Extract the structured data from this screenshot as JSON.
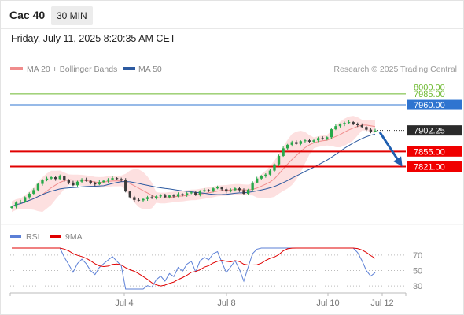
{
  "header": {
    "symbol": "Cac 40",
    "timeframe": "30 MIN"
  },
  "datetime": "Friday, July 11, 2025 8:20:35 AM CET",
  "legend": {
    "ma20": {
      "label": "MA 20 + Bollinger Bands",
      "color": "#f08c8c"
    },
    "ma50": {
      "label": "MA 50",
      "color": "#2d5aa0"
    }
  },
  "credit": "Research © 2025 Trading Central",
  "rsi_legend": {
    "rsi": {
      "label": "RSI",
      "color": "#5b7fd6"
    },
    "ma9": {
      "label": "9MA",
      "color": "#e00000"
    }
  },
  "chart_data": [
    {
      "type": "candlestick",
      "ylim": [
        7705,
        8015
      ],
      "levels": [
        {
          "value": 8000.0,
          "label": "8000.00",
          "color": "#6bb82c",
          "label_color": "#6bb82c",
          "style": "line"
        },
        {
          "value": 7985.0,
          "label": "7985.00",
          "color": "#6bb82c",
          "label_color": "#6bb82c",
          "style": "line"
        },
        {
          "value": 7960.0,
          "label": "7960.00",
          "color": "#2f74d0",
          "label_color": "#ffffff",
          "label_bg": "#2f74d0",
          "style": "line"
        },
        {
          "value": 7902.25,
          "label": "7902.25",
          "color": "#333333",
          "label_color": "#ffffff",
          "label_bg": "#2b2b2b",
          "style": "dotted"
        },
        {
          "value": 7855.0,
          "label": "7855.00",
          "color": "#e00000",
          "label_color": "#ffffff",
          "label_bg": "#f00000",
          "style": "thick"
        },
        {
          "value": 7821.0,
          "label": "7821.00",
          "color": "#e00000",
          "label_color": "#ffffff",
          "label_bg": "#f00000",
          "style": "thick"
        }
      ],
      "last_price": 7902.25,
      "forecast_arrow": {
        "from": 7900,
        "to": 7828,
        "color": "#1f5fb0"
      },
      "closes": [
        7731,
        7740,
        7742,
        7752,
        7760,
        7768,
        7782,
        7790,
        7794,
        7797,
        7793,
        7799,
        7790,
        7785,
        7779,
        7787,
        7792,
        7789,
        7784,
        7781,
        7786,
        7789,
        7792,
        7795,
        7793,
        7791,
        7765,
        7752,
        7746,
        7745,
        7748,
        7752,
        7750,
        7754,
        7756,
        7752,
        7756,
        7754,
        7759,
        7757,
        7761,
        7763,
        7758,
        7765,
        7768,
        7767,
        7772,
        7774,
        7770,
        7765,
        7768,
        7772,
        7768,
        7760,
        7769,
        7785,
        7794,
        7800,
        7803,
        7812,
        7826,
        7845,
        7862,
        7870,
        7876,
        7872,
        7878,
        7880,
        7877,
        7880,
        7885,
        7883,
        7887,
        7905,
        7912,
        7916,
        7919,
        7921,
        7917,
        7914,
        7910,
        7904,
        7900,
        7902
      ]
    },
    {
      "type": "line",
      "title": "RSI",
      "ylim": [
        25,
        80
      ],
      "yticks": [
        70,
        50,
        30
      ],
      "x_ticks": [
        "Jul 4",
        "Jul 8",
        "Jul 10",
        "Jul 12"
      ]
    }
  ]
}
